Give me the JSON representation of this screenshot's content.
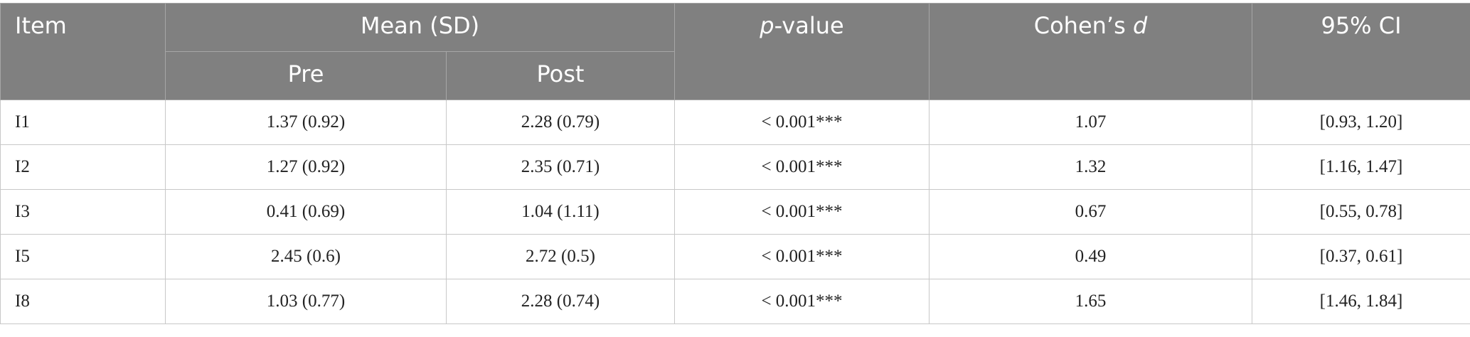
{
  "table": {
    "header": {
      "item": "Item",
      "mean_sd": "Mean (SD)",
      "pre": "Pre",
      "post": "Post",
      "p_value": [
        "p",
        "-value"
      ],
      "cohens_d": [
        "Cohen’s ",
        "d"
      ],
      "ci": "95% CI"
    },
    "rows": [
      [
        "I1",
        "1.37 (0.92)",
        "2.28 (0.79)",
        "< 0.001***",
        "1.07",
        "[0.93, 1.20]"
      ],
      [
        "I2",
        "1.27 (0.92)",
        "2.35 (0.71)",
        "< 0.001***",
        "1.32",
        "[1.16, 1.47]"
      ],
      [
        "I3",
        "0.41 (0.69)",
        "1.04 (1.11)",
        "< 0.001***",
        "0.67",
        "[0.55, 0.78]"
      ],
      [
        "I5",
        "2.45 (0.6)",
        "2.72 (0.5)",
        "< 0.001***",
        "0.49",
        "[0.37, 0.61]"
      ],
      [
        "I8",
        "1.03 (0.77)",
        "2.28 (0.74)",
        "< 0.001***",
        "1.65",
        "[1.46, 1.84]"
      ]
    ]
  }
}
